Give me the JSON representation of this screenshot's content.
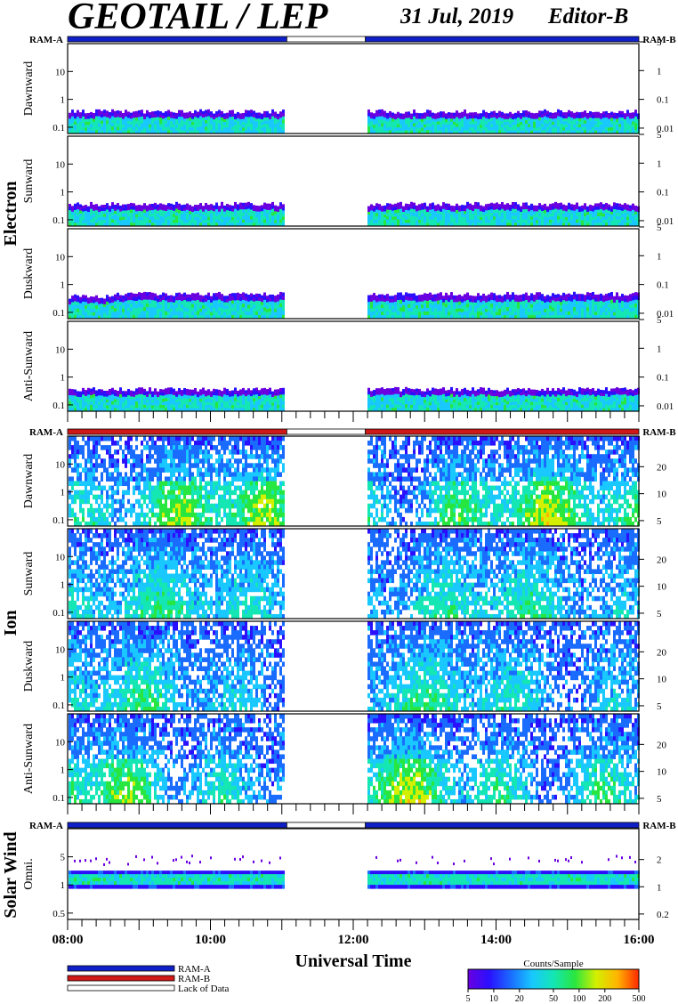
{
  "header": {
    "title": "GEOTAIL / LEP",
    "date": "31 Jul, 2019",
    "editor": "Editor-B"
  },
  "ram": {
    "left_label": "RAM-A",
    "right_label": "RAM-B"
  },
  "colors": {
    "ram_a": "#1020c8",
    "ram_b": "#d01818",
    "lack": "#ffffff",
    "frame": "#000000",
    "spectrogram_scale": [
      "#6a00e0",
      "#2a10ff",
      "#1a6cff",
      "#18c8ff",
      "#14e6b4",
      "#28e640",
      "#d4f000",
      "#ffb400",
      "#ff2800"
    ]
  },
  "chart_data": {
    "type": "heatmap",
    "xlabel": "Universal Time",
    "x_ticks": [
      "08:00",
      "10:00",
      "12:00",
      "14:00",
      "16:00"
    ],
    "x_range_hours": [
      8,
      16
    ],
    "data_gap_hours": [
      11.07,
      12.17
    ],
    "groups": [
      {
        "name": "Electron",
        "ram_bar": "ram_a",
        "panels": [
          {
            "name": "Dawnward",
            "left_ticks": [
              "0.1",
              "1",
              "10"
            ],
            "right_ticks": [
              "0.01",
              "0.1",
              "1",
              "5"
            ],
            "band": "electron"
          },
          {
            "name": "Sunward",
            "left_ticks": [
              "0.1",
              "1",
              "10"
            ],
            "right_ticks": [
              "0.01",
              "0.1",
              "1",
              "5"
            ],
            "band": "electron"
          },
          {
            "name": "Duskward",
            "left_ticks": [
              "0.1",
              "1",
              "10"
            ],
            "right_ticks": [
              "0.01",
              "0.1",
              "1",
              "5"
            ],
            "band": "electron"
          },
          {
            "name": "Anti-Sunward",
            "left_ticks": [
              "0.1",
              "1",
              "10"
            ],
            "right_ticks": [
              "0.01",
              "0.1",
              "1",
              "5"
            ],
            "band": "electron"
          }
        ]
      },
      {
        "name": "Ion",
        "ram_bar": "ram_b",
        "panels": [
          {
            "name": "Dawnward",
            "left_ticks": [
              "0.1",
              "1",
              "10"
            ],
            "right_ticks": [
              "5",
              "10",
              "20"
            ],
            "band": "ion"
          },
          {
            "name": "Sunward",
            "left_ticks": [
              "0.1",
              "1",
              "10"
            ],
            "right_ticks": [
              "5",
              "10",
              "20"
            ],
            "band": "ion"
          },
          {
            "name": "Duskward",
            "left_ticks": [
              "0.1",
              "1",
              "10"
            ],
            "right_ticks": [
              "5",
              "10",
              "20"
            ],
            "band": "ion"
          },
          {
            "name": "Anti-Sunward",
            "left_ticks": [
              "0.1",
              "1",
              "10"
            ],
            "right_ticks": [
              "5",
              "10",
              "20"
            ],
            "band": "ion"
          }
        ]
      },
      {
        "name": "Solar Wind",
        "ram_bar": "ram_a",
        "panels": [
          {
            "name": "Omni.",
            "left_ticks": [
              "0.5",
              "1",
              "5"
            ],
            "right_ticks": [
              "0.2",
              "1",
              "2"
            ],
            "band": "solar"
          }
        ]
      }
    ],
    "legend": {
      "items": [
        {
          "label": "RAM-A",
          "color": "ram_a"
        },
        {
          "label": "RAM-B",
          "color": "ram_b"
        },
        {
          "label": "Lack of Data",
          "color": "lack"
        }
      ]
    },
    "colorbar": {
      "title": "Counts/Sample",
      "ticks": [
        "5",
        "10",
        "20",
        "50",
        "100",
        "200",
        "500"
      ]
    }
  }
}
